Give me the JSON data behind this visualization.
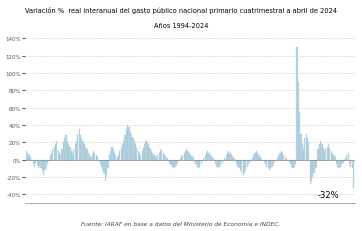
{
  "title_line1": "Variación %  real interanual del gasto público nacional primario cuatrimestral a abril de 2024",
  "title_line2": "Años 1994-2024",
  "footnote": "Fuente: IARAF en base a datos del Ministerio de Economía e INDEC.",
  "annotation": "-32%",
  "bar_color": "#b8d4e3",
  "bar_edge_color": "#9abdd0",
  "ylim": [
    -50,
    145
  ],
  "yticks": [
    -40,
    -20,
    0,
    20,
    40,
    60,
    80,
    100,
    120,
    140
  ],
  "values": [
    10,
    7,
    5,
    3,
    -2,
    -5,
    -8,
    -4,
    -6,
    -10,
    -7,
    -9,
    -13,
    -18,
    -12,
    -8,
    -4,
    -2,
    5,
    8,
    12,
    15,
    18,
    22,
    10,
    8,
    6,
    12,
    20,
    25,
    28,
    22,
    18,
    15,
    10,
    8,
    12,
    18,
    22,
    30,
    35,
    28,
    25,
    22,
    18,
    15,
    12,
    8,
    5,
    3,
    6,
    10,
    8,
    5,
    3,
    -2,
    -5,
    -8,
    -12,
    -15,
    -25,
    -18,
    -10,
    5,
    10,
    15,
    12,
    8,
    5,
    3,
    6,
    10,
    14,
    18,
    22,
    28,
    35,
    40,
    38,
    32,
    28,
    25,
    22,
    18,
    14,
    10,
    8,
    6,
    10,
    14,
    18,
    22,
    20,
    18,
    14,
    10,
    8,
    6,
    4,
    2,
    5,
    8,
    12,
    10,
    8,
    6,
    4,
    2,
    -2,
    -4,
    -6,
    -8,
    -10,
    -8,
    -6,
    -4,
    -2,
    2,
    4,
    6,
    8,
    10,
    12,
    10,
    8,
    6,
    4,
    2,
    -2,
    -5,
    -8,
    -10,
    -8,
    -5,
    -2,
    2,
    5,
    8,
    10,
    8,
    6,
    4,
    2,
    -2,
    -5,
    -8,
    -10,
    -8,
    -6,
    -4,
    -2,
    2,
    5,
    8,
    10,
    8,
    6,
    4,
    2,
    -2,
    -5,
    -8,
    -10,
    -12,
    -15,
    -18,
    -15,
    -12,
    -8,
    -5,
    -3,
    -1,
    2,
    5,
    8,
    10,
    8,
    5,
    3,
    1,
    -1,
    -3,
    -5,
    -8,
    -10,
    -12,
    -10,
    -8,
    -5,
    -3,
    -1,
    2,
    5,
    8,
    10,
    8,
    5,
    3,
    1,
    -1,
    -3,
    -5,
    -8,
    -10,
    -8,
    -5,
    130,
    90,
    55,
    30,
    18,
    12,
    25,
    30,
    25,
    20,
    -28,
    -25,
    -20,
    -15,
    -10,
    -8,
    12,
    18,
    22,
    18,
    14,
    10,
    12,
    15,
    18,
    14,
    10,
    8,
    6,
    4,
    -5,
    -8,
    -10,
    -8,
    -6,
    -4,
    -2,
    2,
    5,
    8,
    -5,
    -8,
    -10,
    -32
  ]
}
